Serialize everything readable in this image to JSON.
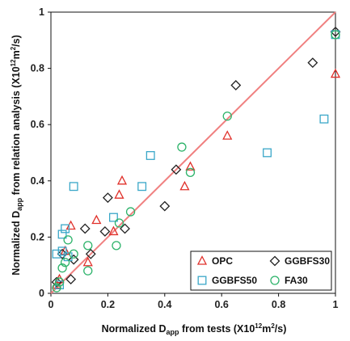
{
  "chart_data": {
    "type": "scatter",
    "xlabel": {
      "pre": "Normalized D",
      "sub": "app",
      "post": " from tests (X10",
      "sup1": "12",
      "mid": "m",
      "sup2": "2",
      "end": "/s)"
    },
    "ylabel": {
      "pre": "Normalized D",
      "sub": "app",
      "post": " from relation analysis (X10",
      "sup1": "12",
      "mid": "m",
      "sup2": "2",
      "end": "/s)"
    },
    "xlim": [
      0,
      1
    ],
    "ylim": [
      0,
      1
    ],
    "xticks": [
      "0",
      "0.2",
      "0.4",
      "0.6",
      "0.8",
      "1"
    ],
    "yticks": [
      "0",
      "0.2",
      "0.4",
      "0.6",
      "0.8",
      "1"
    ],
    "grid": false,
    "legend_position": "bottom-right",
    "reference_line": {
      "from": [
        0,
        0
      ],
      "to": [
        1,
        1
      ],
      "color": "#f08080"
    },
    "series": [
      {
        "name": "OPC",
        "marker": "triangle",
        "color": "#e0302a",
        "points": [
          [
            0.02,
            0.03
          ],
          [
            0.03,
            0.05
          ],
          [
            0.05,
            0.15
          ],
          [
            0.07,
            0.24
          ],
          [
            0.13,
            0.11
          ],
          [
            0.16,
            0.26
          ],
          [
            0.22,
            0.22
          ],
          [
            0.24,
            0.35
          ],
          [
            0.25,
            0.4
          ],
          [
            0.47,
            0.38
          ],
          [
            0.49,
            0.45
          ],
          [
            0.62,
            0.56
          ],
          [
            1.0,
            0.78
          ]
        ]
      },
      {
        "name": "GGBFS30",
        "marker": "diamond",
        "color": "#222222",
        "points": [
          [
            0.02,
            0.04
          ],
          [
            0.04,
            0.14
          ],
          [
            0.07,
            0.05
          ],
          [
            0.08,
            0.12
          ],
          [
            0.12,
            0.23
          ],
          [
            0.14,
            0.14
          ],
          [
            0.19,
            0.22
          ],
          [
            0.2,
            0.34
          ],
          [
            0.26,
            0.23
          ],
          [
            0.4,
            0.31
          ],
          [
            0.44,
            0.44
          ],
          [
            0.65,
            0.74
          ],
          [
            0.92,
            0.82
          ],
          [
            1.0,
            0.93
          ]
        ]
      },
      {
        "name": "GGBFS50",
        "marker": "square",
        "color": "#3aa7c8",
        "points": [
          [
            0.02,
            0.14
          ],
          [
            0.03,
            0.03
          ],
          [
            0.04,
            0.15
          ],
          [
            0.04,
            0.21
          ],
          [
            0.05,
            0.23
          ],
          [
            0.06,
            0.13
          ],
          [
            0.08,
            0.38
          ],
          [
            0.22,
            0.27
          ],
          [
            0.32,
            0.38
          ],
          [
            0.35,
            0.49
          ],
          [
            0.76,
            0.5
          ],
          [
            0.96,
            0.62
          ],
          [
            1.0,
            0.92
          ]
        ]
      },
      {
        "name": "FA30",
        "marker": "circle",
        "color": "#2db36a",
        "points": [
          [
            0.02,
            0.02
          ],
          [
            0.03,
            0.04
          ],
          [
            0.04,
            0.09
          ],
          [
            0.05,
            0.11
          ],
          [
            0.06,
            0.19
          ],
          [
            0.08,
            0.14
          ],
          [
            0.13,
            0.08
          ],
          [
            0.13,
            0.17
          ],
          [
            0.23,
            0.17
          ],
          [
            0.24,
            0.25
          ],
          [
            0.28,
            0.29
          ],
          [
            0.46,
            0.52
          ],
          [
            0.49,
            0.43
          ],
          [
            0.62,
            0.63
          ],
          [
            1.0,
            0.92
          ]
        ]
      }
    ]
  }
}
